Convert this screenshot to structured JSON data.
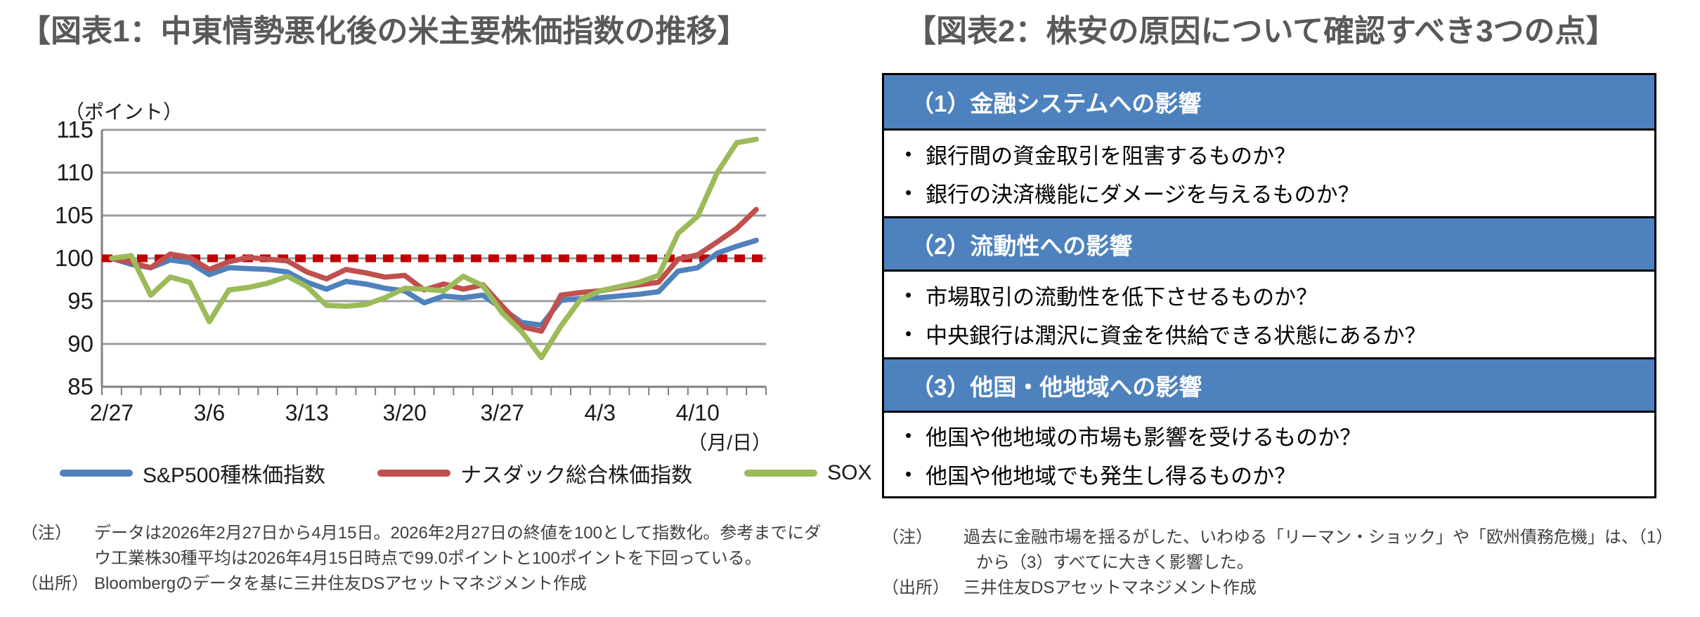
{
  "figure1": {
    "title": "【図表1：中東情勢悪化後の米主要株価指数の推移】",
    "y_axis_unit": "（ポイント）",
    "x_axis_unit": "（月/日）",
    "note_label": "（注）",
    "note": "データは2026年2月27日から4月15日。2026年2月27日の終値を100として指数化。参考までにダウ工業株30種平均は2026年4月15日時点で99.0ポイントと100ポイントを下回っている。",
    "source_label": "（出所）",
    "source": "Bloombergのデータを基に三井住友DSアセットマネジメント作成"
  },
  "chart_data": {
    "type": "line",
    "title": "中東情勢悪化後の米主要株価指数の推移",
    "ylabel": "ポイント",
    "xlabel": "月/日",
    "ylim": [
      85,
      115
    ],
    "y_ticks": [
      85,
      90,
      95,
      100,
      105,
      110,
      115
    ],
    "grid": true,
    "legend_position": "bottom",
    "reference_line": {
      "value": 100,
      "style": "dashed",
      "color": "#C00000"
    },
    "x": [
      "2/27",
      "3/2",
      "3/3",
      "3/4",
      "3/5",
      "3/6",
      "3/9",
      "3/10",
      "3/11",
      "3/12",
      "3/13",
      "3/16",
      "3/17",
      "3/18",
      "3/19",
      "3/20",
      "3/23",
      "3/24",
      "3/25",
      "3/26",
      "3/27",
      "3/30",
      "3/31",
      "4/1",
      "4/2",
      "4/3",
      "4/6",
      "4/7",
      "4/8",
      "4/9",
      "4/10",
      "4/13",
      "4/14",
      "4/15"
    ],
    "x_tick_labels": [
      "2/27",
      "3/6",
      "3/13",
      "3/20",
      "3/27",
      "4/3",
      "4/10"
    ],
    "x_tick_label_indices": [
      0,
      5,
      10,
      15,
      20,
      25,
      30
    ],
    "series": [
      {
        "name": "S&P500種株価指数",
        "color": "#4F81BD",
        "values": [
          100,
          99.3,
          98.9,
          99.8,
          99.5,
          98.1,
          98.9,
          98.8,
          98.7,
          98.4,
          97.2,
          96.4,
          97.3,
          97.0,
          96.5,
          96.2,
          94.8,
          95.6,
          95.4,
          95.7,
          94.1,
          92.5,
          92.2,
          95.1,
          95.3,
          95.4,
          95.6,
          95.8,
          96.1,
          98.5,
          98.9,
          100.6,
          101.4,
          102.1
        ]
      },
      {
        "name": "ナスダック総合株価指数",
        "color": "#C0504D",
        "values": [
          100,
          99.5,
          98.9,
          100.5,
          100.1,
          98.7,
          99.6,
          100.1,
          99.9,
          99.7,
          98.4,
          97.6,
          98.7,
          98.3,
          97.8,
          98.0,
          96.3,
          97.0,
          96.4,
          96.9,
          94.4,
          92.0,
          91.5,
          95.7,
          96.0,
          96.2,
          96.6,
          96.9,
          97.2,
          99.9,
          100.4,
          101.9,
          103.5,
          105.7
        ]
      },
      {
        "name": "SOX",
        "color": "#9BBB59",
        "values": [
          100,
          100.3,
          95.7,
          97.8,
          97.2,
          92.6,
          96.3,
          96.6,
          97.1,
          97.9,
          96.7,
          94.5,
          94.4,
          94.6,
          95.4,
          96.5,
          96.4,
          96.2,
          97.9,
          96.8,
          93.6,
          91.4,
          88.4,
          92.1,
          95.2,
          96.2,
          96.7,
          97.2,
          98.0,
          102.9,
          104.9,
          110.0,
          113.5,
          113.9
        ]
      }
    ]
  },
  "figure2": {
    "title": "【図表2：株安の原因について確認すべき3つの点】",
    "sections": [
      {
        "header": "（1）金融システムへの影響",
        "bullets": [
          "銀行間の資金取引を阻害するものか？",
          "銀行の決済機能にダメージを与えるものか？"
        ]
      },
      {
        "header": "（2）流動性への影響",
        "bullets": [
          "市場取引の流動性を低下させるものか？",
          "中央銀行は潤沢に資金を供給できる状態にあるか？"
        ]
      },
      {
        "header": "（3）他国・他地域への影響",
        "bullets": [
          "他国や他地域の市場も影響を受けるものか？",
          "他国や他地域でも発生し得るものか？"
        ]
      }
    ],
    "note_label": "（注）",
    "note": "過去に金融市場を揺るがした、いわゆる「リーマン・ショック」や「欧州債務危機」は、（1）から（3）すべてに大きく影響した。",
    "source_label": "（出所）",
    "source": "三井住友DSアセットマネジメント作成"
  },
  "colors": {
    "title_gray": "#595959",
    "header_blue": "#4D82BE",
    "grid_gray": "#9d9d9d",
    "axis_gray": "#808080",
    "reference_red": "#C00000",
    "sp500_blue": "#4F81BD",
    "nasdaq_red": "#C0504D",
    "sox_green": "#9BBB59"
  }
}
